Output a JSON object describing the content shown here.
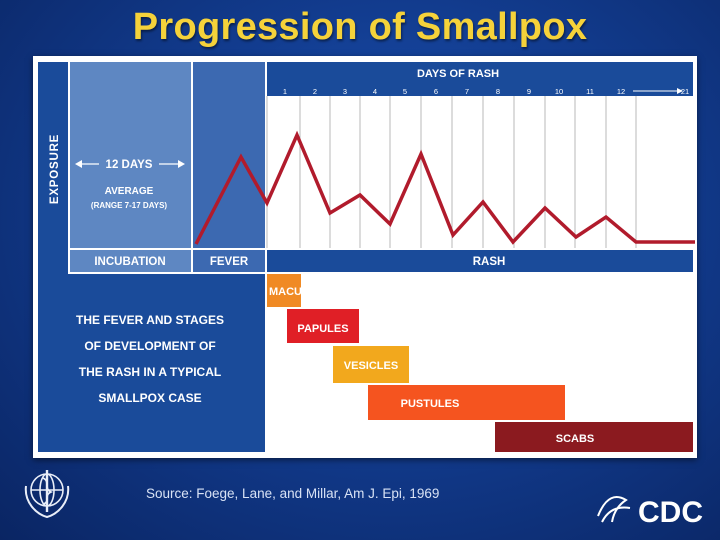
{
  "slide": {
    "title": "Progression of Smallpox",
    "source": "Source:  Foege, Lane, and Millar, Am J. Epi, 1969"
  },
  "diagram": {
    "exposure_label": "EXPOSURE",
    "incubation_span": "12 DAYS",
    "incubation_average": "AVERAGE",
    "incubation_range": "(RANGE 7-17 DAYS)",
    "days_of_rash_label": "DAYS OF RASH",
    "day_ticks": [
      "1",
      "2",
      "3",
      "4",
      "5",
      "6",
      "7",
      "8",
      "9",
      "10",
      "11",
      "12",
      "21"
    ],
    "phases": [
      "INCUBATION",
      "FEVER",
      "RASH"
    ],
    "description": [
      "THE FEVER AND STAGES",
      "OF DEVELOPMENT OF",
      "THE RASH IN A TYPICAL",
      "SMALLPOX CASE"
    ],
    "stages": [
      {
        "name": "MACULES",
        "color": "#f08a24"
      },
      {
        "name": "PAPULES",
        "color": "#e01f26"
      },
      {
        "name": "VESICLES",
        "color": "#f2a81d"
      },
      {
        "name": "PUSTULES",
        "color": "#f5541f"
      },
      {
        "name": "SCABS",
        "color": "#8b1a1f"
      }
    ],
    "fever_curve_color": "#b11b2c"
  },
  "logos": {
    "left": "who-emblem-icon",
    "right": "cdc-logo-icon",
    "right_text": "CDC"
  }
}
